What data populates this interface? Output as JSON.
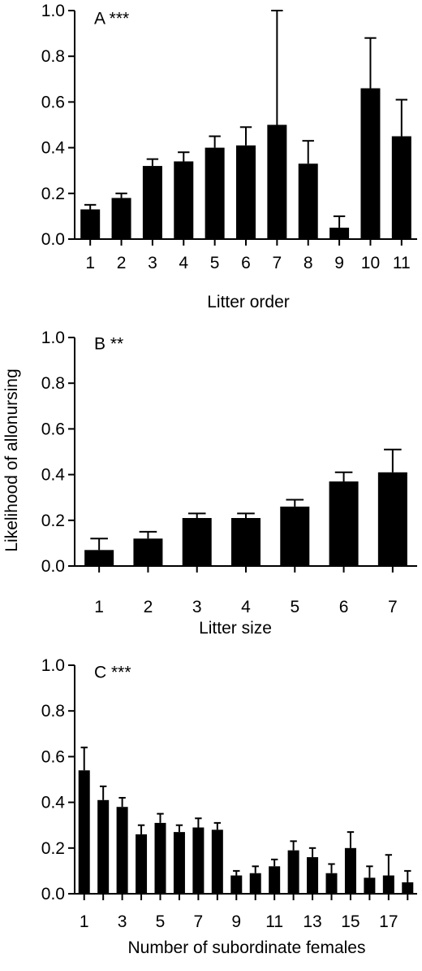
{
  "ylabel": "Likelihood of allonursing",
  "chart_data": [
    {
      "type": "bar",
      "panel_label": "A ***",
      "xlabel": "Litter order",
      "ylim": [
        0,
        1.0
      ],
      "yticks": [
        "0.0",
        "0.2",
        "0.4",
        "0.6",
        "0.8",
        "1.0"
      ],
      "categories": [
        "1",
        "2",
        "3",
        "4",
        "5",
        "6",
        "7",
        "8",
        "9",
        "10",
        "11"
      ],
      "values": [
        0.13,
        0.18,
        0.32,
        0.34,
        0.4,
        0.41,
        0.5,
        0.33,
        0.05,
        0.66,
        0.45
      ],
      "error_upper": [
        0.15,
        0.2,
        0.35,
        0.38,
        0.45,
        0.49,
        1.0,
        0.43,
        0.1,
        0.88,
        0.61
      ],
      "grid": false
    },
    {
      "type": "bar",
      "panel_label": "B **",
      "xlabel": "Litter size",
      "ylim": [
        0,
        1.0
      ],
      "yticks": [
        "0.0",
        "0.2",
        "0.4",
        "0.6",
        "0.8",
        "1.0"
      ],
      "categories": [
        "1",
        "2",
        "3",
        "4",
        "5",
        "6",
        "7"
      ],
      "values": [
        0.07,
        0.12,
        0.21,
        0.21,
        0.26,
        0.37,
        0.41
      ],
      "error_upper": [
        0.12,
        0.15,
        0.23,
        0.23,
        0.29,
        0.41,
        0.51
      ],
      "grid": false
    },
    {
      "type": "bar",
      "panel_label": "C ***",
      "xlabel": "Number of subordinate females",
      "ylim": [
        0,
        1.0
      ],
      "yticks": [
        "0.0",
        "0.2",
        "0.4",
        "0.6",
        "0.8",
        "1.0"
      ],
      "categories": [
        "1",
        "",
        "3",
        "",
        "5",
        "",
        "7",
        "",
        "9",
        "",
        "11",
        "",
        "13",
        "",
        "15",
        "",
        "17",
        ""
      ],
      "values": [
        0.54,
        0.41,
        0.38,
        0.26,
        0.31,
        0.27,
        0.29,
        0.28,
        0.08,
        0.09,
        0.12,
        0.19,
        0.16,
        0.09,
        0.2,
        0.07,
        0.08,
        0.05
      ],
      "error_upper": [
        0.64,
        0.47,
        0.42,
        0.3,
        0.35,
        0.3,
        0.33,
        0.31,
        0.1,
        0.12,
        0.15,
        0.23,
        0.2,
        0.13,
        0.27,
        0.12,
        0.17,
        0.1
      ],
      "grid": false
    }
  ]
}
